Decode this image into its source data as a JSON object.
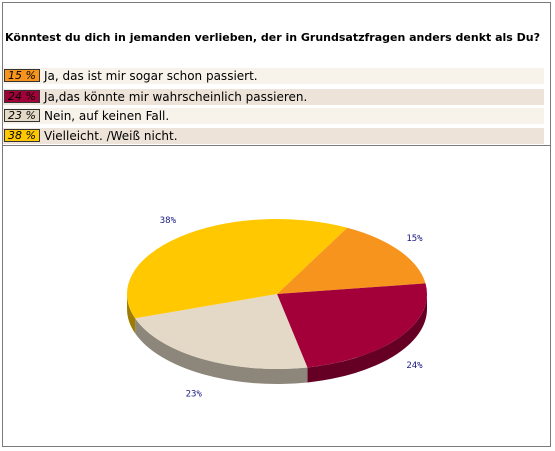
{
  "question": "Könntest du dich in jemanden verlieben, der in Grundsatzfragen anders denkt als Du?",
  "options": [
    {
      "percent_label": "15 %",
      "label": "Ja, das ist mir sogar schon passiert.",
      "color": "#f7941d",
      "row_bg": "#f7f2ea"
    },
    {
      "percent_label": "24 %",
      "label": "Ja,das könnte mir wahrscheinlich passieren.",
      "color": "#a3003a",
      "row_bg": "#ede3d8"
    },
    {
      "percent_label": "23 %",
      "label": "Nein, auf keinen Fall.",
      "color": "#e3d9c6",
      "row_bg": "#f7f2ea"
    },
    {
      "percent_label": "38 %",
      "label": "Vielleicht. /Weiß nicht.",
      "color": "#ffc800",
      "row_bg": "#ede3d8"
    }
  ],
  "chart_data": {
    "type": "pie",
    "title": "",
    "categories": [
      "Ja, das ist mir sogar schon passiert.",
      "Ja,das könnte mir wahrscheinlich passieren.",
      "Nein, auf keinen Fall.",
      "Vielleicht. /Weiß nicht."
    ],
    "values": [
      15,
      24,
      23,
      38
    ],
    "value_labels": [
      "15%",
      "24%",
      "23%",
      "38%"
    ],
    "colors": [
      "#f7941d",
      "#a3003a",
      "#e3d9c6",
      "#ffc800"
    ],
    "style": "3d"
  }
}
